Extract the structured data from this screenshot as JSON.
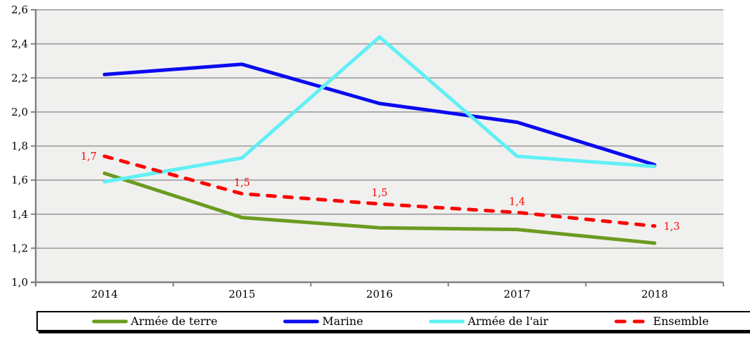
{
  "chart_data": {
    "type": "line",
    "title": "",
    "categories": [
      "2014",
      "2015",
      "2016",
      "2017",
      "2018"
    ],
    "series": [
      {
        "name": "Armée de terre",
        "color": "#6B9B20",
        "style": "solid",
        "values": [
          1.64,
          1.38,
          1.32,
          1.31,
          1.23
        ]
      },
      {
        "name": "Marine",
        "color": "#0A0AF0",
        "style": "solid",
        "values": [
          2.22,
          2.28,
          2.05,
          1.94,
          1.69
        ]
      },
      {
        "name": "Armée de l'air",
        "color": "#5FF0F5",
        "style": "solid",
        "values": [
          1.59,
          1.73,
          2.44,
          1.74,
          1.68
        ]
      },
      {
        "name": "Ensemble",
        "color": "#FB0505",
        "style": "dashed",
        "values": [
          1.74,
          1.52,
          1.46,
          1.41,
          1.33
        ],
        "data_labels": [
          "1,7",
          "1,5",
          "1,5",
          "1,4",
          "1,3"
        ],
        "data_label_positions": [
          "left",
          "above",
          "above",
          "above",
          "right"
        ]
      }
    ],
    "ylim": [
      1.0,
      2.6
    ],
    "ytick_step": 0.2,
    "ytick_labels": [
      "2,6",
      "2,4",
      "2,2",
      "2,0",
      "1,8",
      "1,6",
      "1,4",
      "1,2",
      "1,0"
    ],
    "grid": true,
    "legend_position": "bottom",
    "plot_bg": "#F0F0EF",
    "grid_color": "#969696",
    "axis_color": "#808080",
    "text_color": "#000000",
    "data_label_color": "#FB0505"
  }
}
